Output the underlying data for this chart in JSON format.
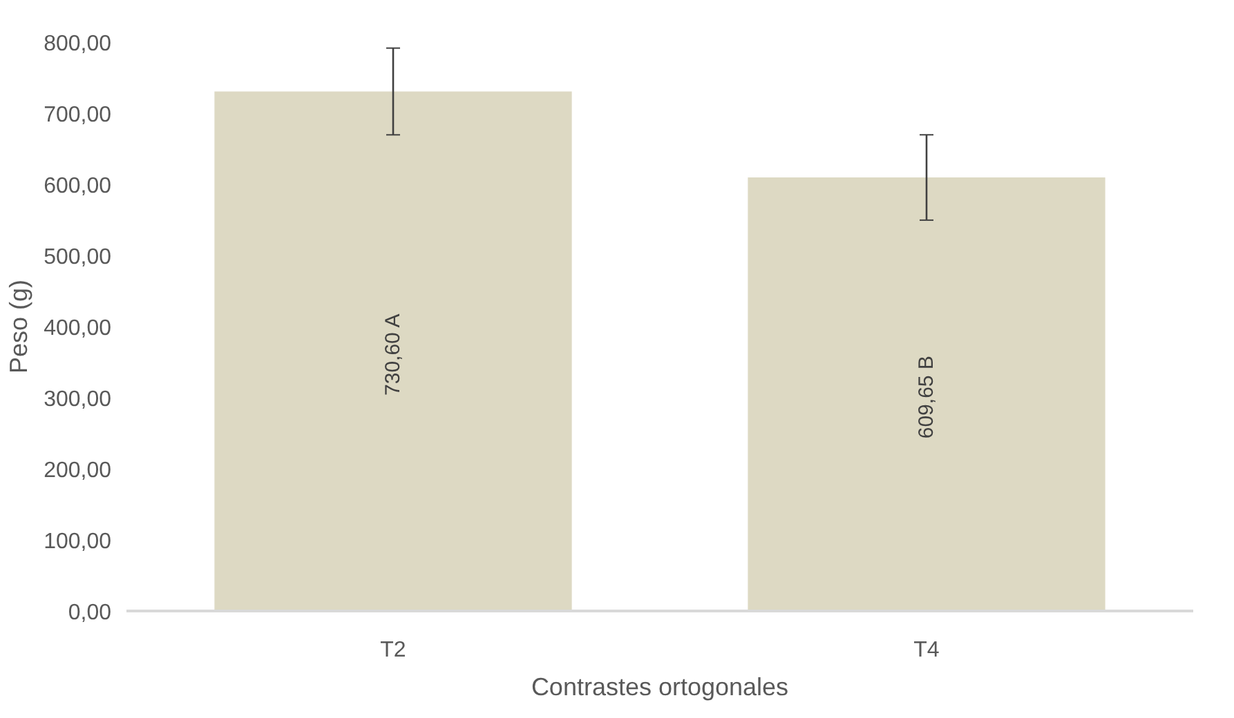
{
  "chart_data": {
    "type": "bar",
    "xlabel": "Contrastes ortogonales",
    "ylabel": "Peso (g)",
    "categories": [
      "T2",
      "T4"
    ],
    "values": [
      730.6,
      609.65
    ],
    "color": "#ddd9c3",
    "errors": [
      61,
      60
    ],
    "value_labels": [
      "730,60  A",
      "609,65  B"
    ],
    "ylim": [
      0,
      800
    ],
    "yticks": [
      {
        "value": 0,
        "label": "0,00"
      },
      {
        "value": 100,
        "label": "100,00"
      },
      {
        "value": 200,
        "label": "200,00"
      },
      {
        "value": 300,
        "label": "300,00"
      },
      {
        "value": 400,
        "label": "400,00"
      },
      {
        "value": 500,
        "label": "500,00"
      },
      {
        "value": 600,
        "label": "600,00"
      },
      {
        "value": 700,
        "label": "700,00"
      },
      {
        "value": 800,
        "label": "800,00"
      }
    ],
    "grid": false
  }
}
